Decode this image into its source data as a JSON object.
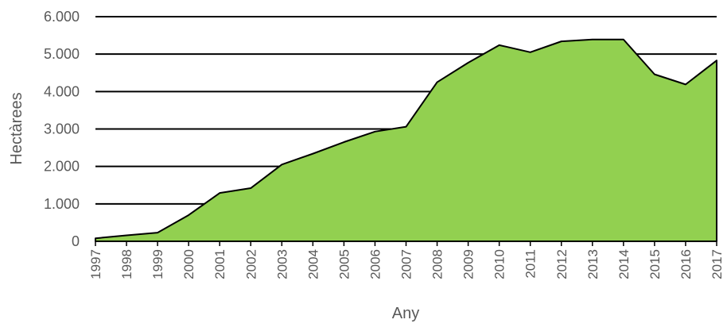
{
  "chart_data": {
    "type": "area",
    "xlabel": "Any",
    "ylabel": "Hectàrees",
    "x": [
      "1997",
      "1998",
      "1999",
      "2000",
      "2001",
      "2002",
      "2003",
      "2004",
      "2005",
      "2006",
      "2007",
      "2008",
      "2009",
      "2010",
      "2011",
      "2012",
      "2013",
      "2014",
      "2015",
      "2016",
      "2017"
    ],
    "series": [
      {
        "values": [
          80,
          160,
          230,
          700,
          1290,
          1420,
          2050,
          2340,
          2650,
          2930,
          3060,
          4250,
          4770,
          5240,
          5050,
          5340,
          5390,
          5390,
          4460,
          4190,
          4830
        ]
      }
    ],
    "ylim": [
      0,
      6000
    ],
    "yticks": [
      0,
      1000,
      2000,
      3000,
      4000,
      5000,
      6000
    ],
    "ytick_labels": [
      "0",
      "1.000",
      "2.000",
      "3.000",
      "4.000",
      "5.000",
      "6.000"
    ],
    "grid": true,
    "colors": {
      "fill": "#92d050",
      "stroke": "#000000",
      "grid": "#000000",
      "text": "#595959"
    }
  }
}
